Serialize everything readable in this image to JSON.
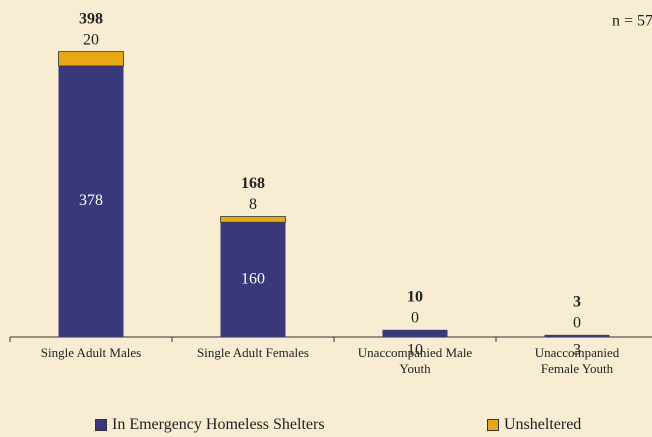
{
  "chart_data": {
    "type": "stacked_bar",
    "note": "n = 57",
    "categories": [
      "Single Adult Males",
      "Single Adult Females",
      "Unaccompanied Male Youth",
      "Unaccompanied Female Youth"
    ],
    "series": [
      {
        "name": "In Emergency Homeless Shelters",
        "color": "#38387a",
        "values": [
          378,
          160,
          10,
          3
        ]
      },
      {
        "name": "Unsheltered",
        "color": "#e8a816",
        "values": [
          20,
          8,
          0,
          0
        ]
      }
    ],
    "totals": [
      398,
      168,
      10,
      3
    ],
    "ylim": [
      0,
      470
    ],
    "legend": "bottom"
  }
}
